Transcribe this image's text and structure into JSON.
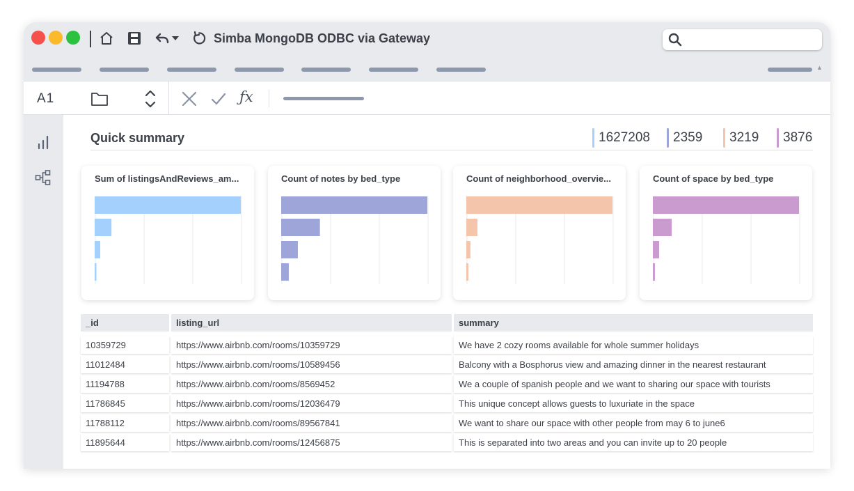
{
  "window": {
    "title": "Simba MongoDB ODBC via Gateway",
    "search": {
      "placeholder": "",
      "value": ""
    }
  },
  "toolbar": {
    "icons": [
      "home-icon",
      "save-icon",
      "undo-icon",
      "dropdown-caret-icon",
      "refresh-icon"
    ]
  },
  "formula_bar": {
    "cell_ref": "A1",
    "fx_label": "ƒx"
  },
  "sidebar": {
    "icons": [
      "bar-chart-icon",
      "hierarchy-icon"
    ]
  },
  "summary": {
    "title": "Quick summary",
    "stats": [
      {
        "value": "1627208",
        "color": "#a3d0fc"
      },
      {
        "value": "2359",
        "color": "#9ea6d9"
      },
      {
        "value": "3219",
        "color": "#f4c4ab"
      },
      {
        "value": "3876",
        "color": "#c99bce"
      }
    ]
  },
  "chart_data": [
    {
      "type": "bar",
      "title": "Sum of listingsAndReviews_am...",
      "color": "#a3d0fc",
      "values": [
        100,
        11.5,
        3.8,
        1.2
      ],
      "xlim": [
        0,
        100
      ]
    },
    {
      "type": "bar",
      "title": "Count of notes by bed_type",
      "color": "#9ea6d9",
      "values": [
        100,
        26.5,
        11.4,
        5.2
      ],
      "xlim": [
        0,
        100
      ]
    },
    {
      "type": "bar",
      "title": "Count of neighborhood_overvie...",
      "color": "#f4c4ab",
      "values": [
        100,
        7.6,
        2.8,
        1.4
      ],
      "xlim": [
        0,
        100
      ]
    },
    {
      "type": "bar",
      "title": "Count of space by bed_type",
      "color": "#c99bce",
      "values": [
        100,
        12.9,
        4.3,
        1.4
      ],
      "xlim": [
        0,
        100
      ]
    }
  ],
  "table": {
    "columns": [
      "_id",
      "listing_url",
      "summary"
    ],
    "rows": [
      [
        "10359729",
        "https://www.airbnb.com/rooms/10359729",
        "We have 2 cozy rooms available for whole summer holidays"
      ],
      [
        "11012484",
        "https://www.airbnb.com/rooms/10589456",
        "Balcony with a Bosphorus view and amazing dinner in the nearest restaurant"
      ],
      [
        "11194788",
        "https://www.airbnb.com/rooms/8569452",
        "We a couple of spanish people and we want to sharing our space with tourists"
      ],
      [
        "11786845",
        "https://www.airbnb.com/rooms/12036479",
        "This unique concept allows guests to luxuriate in the space"
      ],
      [
        "11788112",
        "https://www.airbnb.com/rooms/89567841",
        "We want to share our space with other people from may 6 to june6"
      ],
      [
        "11895644",
        "https://www.airbnb.com/rooms/12456875",
        "This is separated into two areas and you can invite up to 20 people"
      ]
    ]
  }
}
